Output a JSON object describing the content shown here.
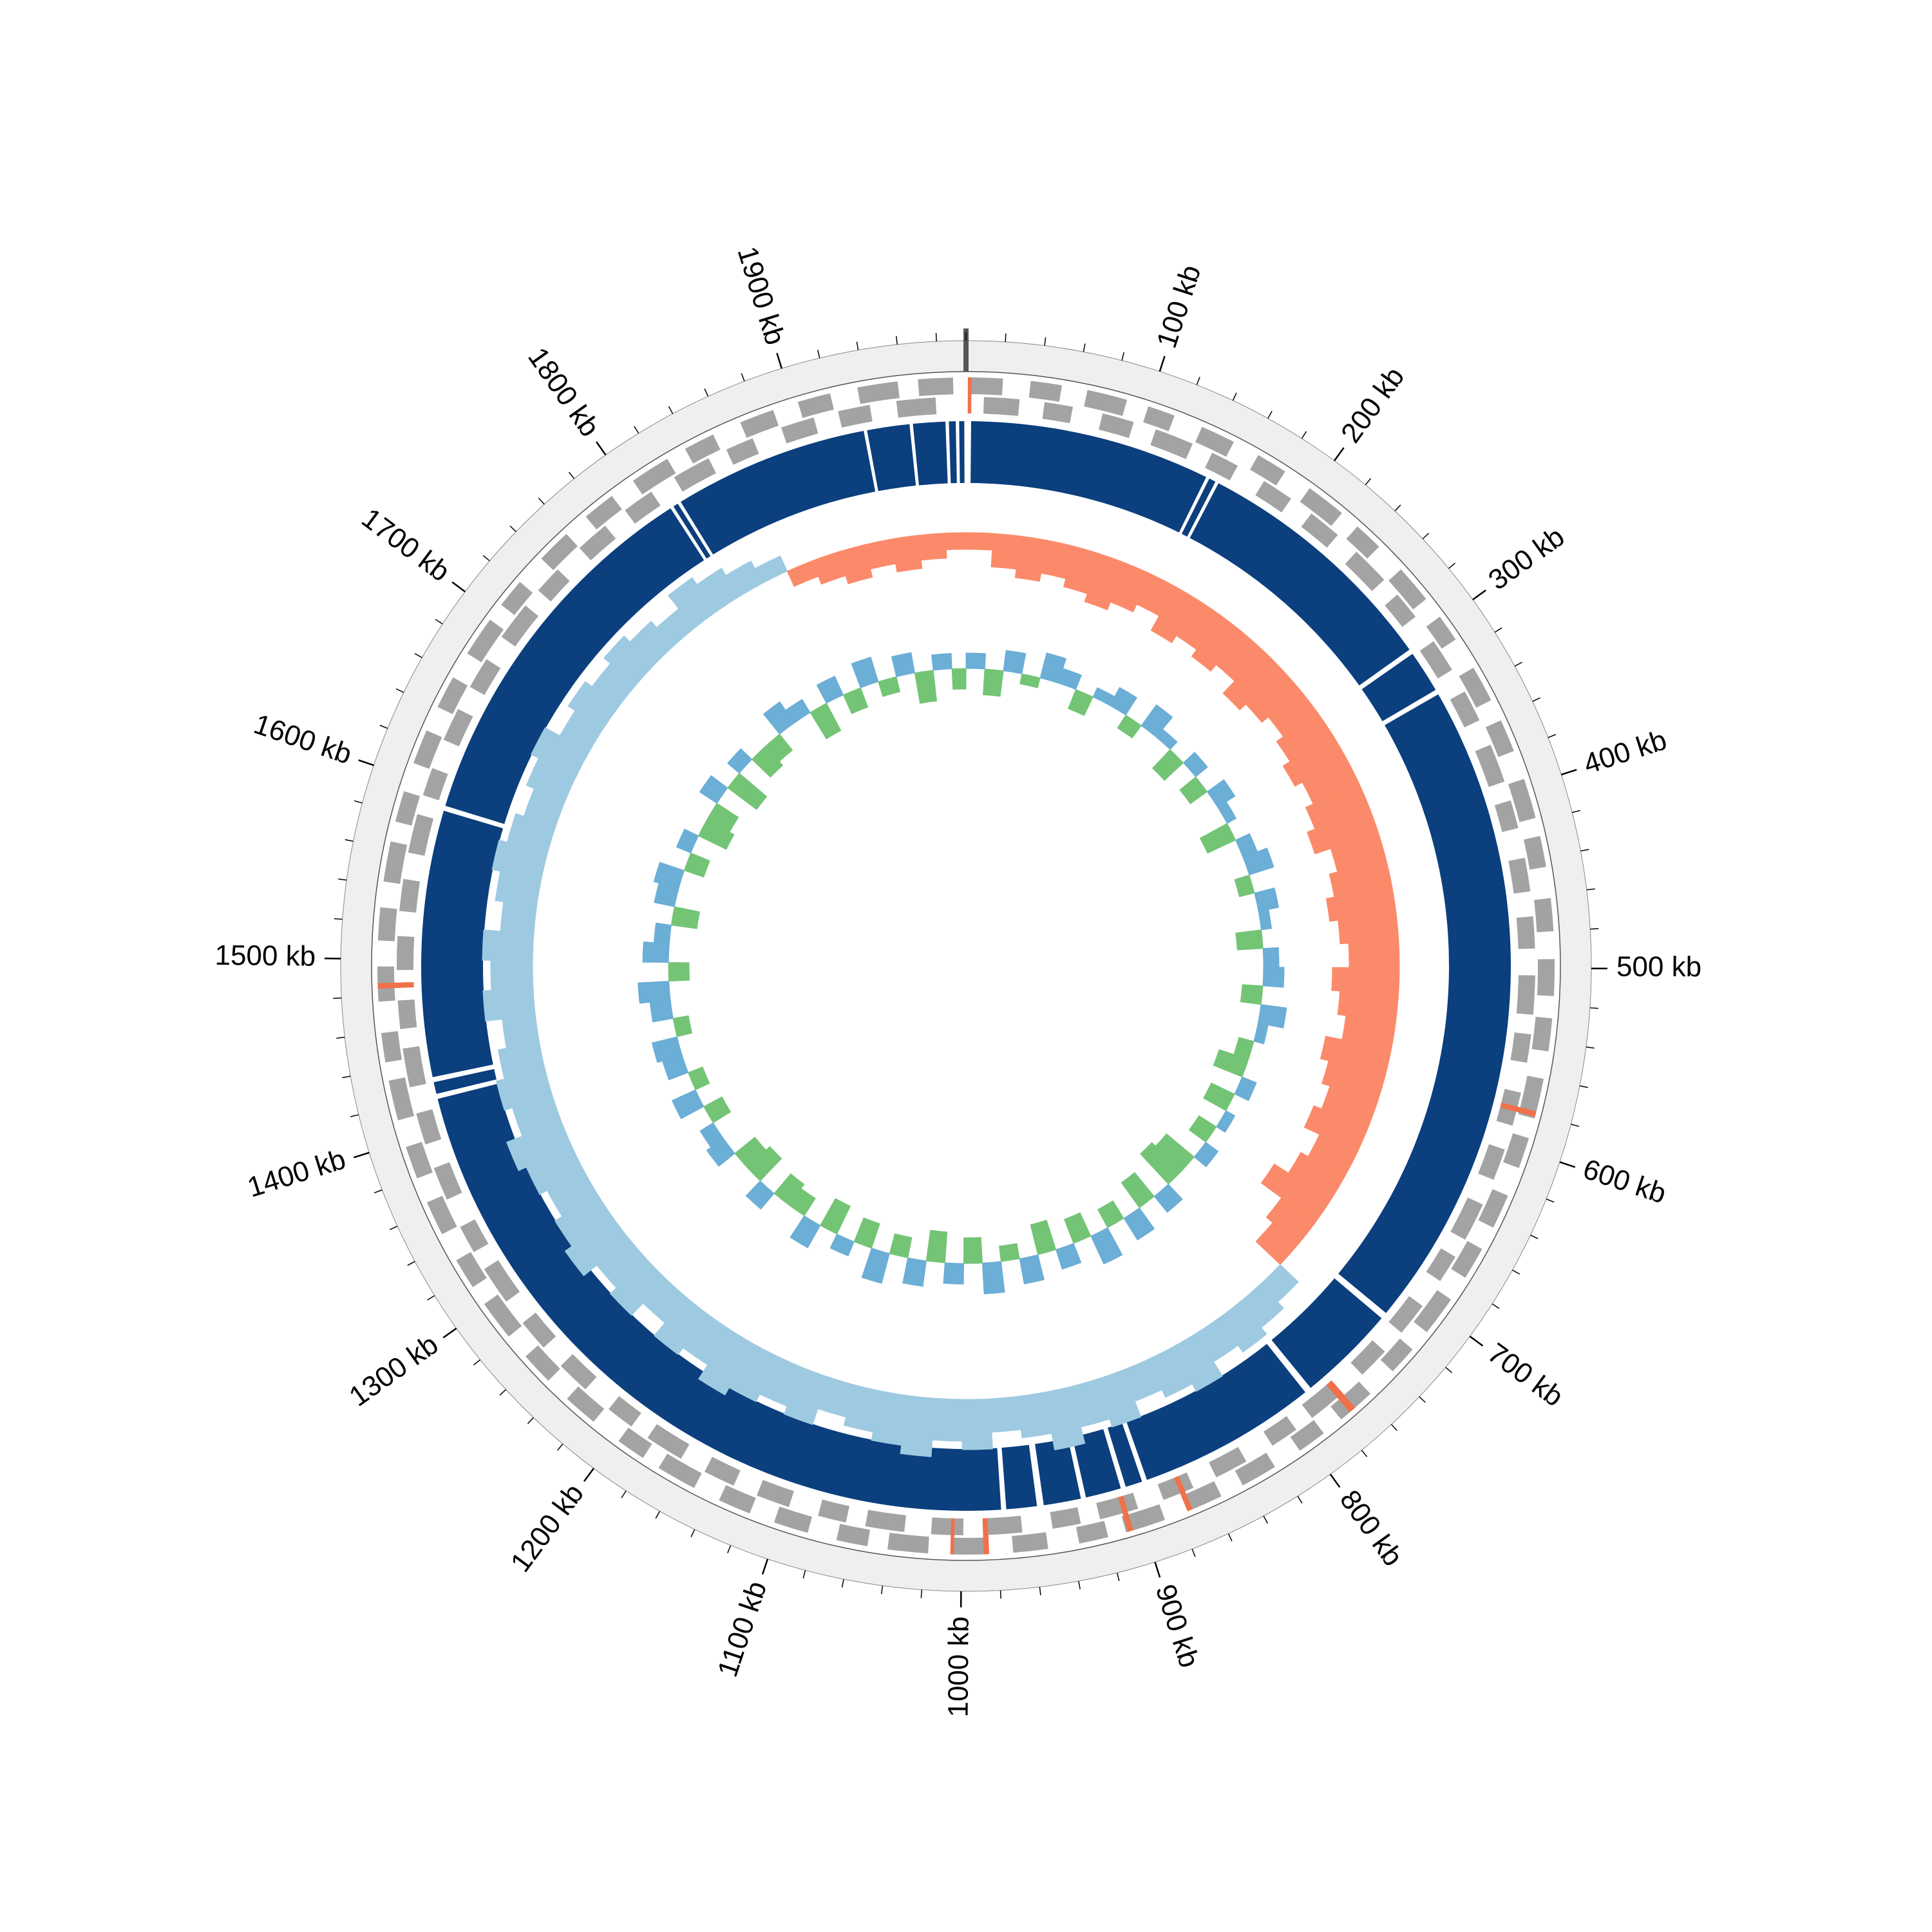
{
  "chart_data": {
    "type": "circular-genome",
    "xlim": [
      0,
      1995
    ],
    "xticks": [
      {
        "value": 100,
        "label": "100 kb"
      },
      {
        "value": 200,
        "label": "200 kb"
      },
      {
        "value": 300,
        "label": "300 kb"
      },
      {
        "value": 400,
        "label": "400 kb"
      },
      {
        "value": 500,
        "label": "500 kb"
      },
      {
        "value": 600,
        "label": "600 kb"
      },
      {
        "value": 700,
        "label": "700 kb"
      },
      {
        "value": 800,
        "label": "800 kb"
      },
      {
        "value": 900,
        "label": "900 kb"
      },
      {
        "value": 1000,
        "label": "1000 kb"
      },
      {
        "value": 1100,
        "label": "1100 kb"
      },
      {
        "value": 1200,
        "label": "1200 kb"
      },
      {
        "value": 1300,
        "label": "1300 kb"
      },
      {
        "value": 1400,
        "label": "1400 kb"
      },
      {
        "value": 1500,
        "label": "1500 kb"
      },
      {
        "value": 1600,
        "label": "1600 kb"
      },
      {
        "value": 1700,
        "label": "1700 kb"
      },
      {
        "value": 1800,
        "label": "1800 kb"
      },
      {
        "value": 1900,
        "label": "1900 kb"
      }
    ],
    "minor_xticks": [
      0,
      20,
      40,
      60,
      80,
      100,
      120,
      140,
      160,
      180,
      200,
      220,
      240,
      260,
      280,
      300,
      320,
      340,
      360,
      380,
      400,
      420,
      440,
      460,
      480,
      500,
      520,
      540,
      560,
      580,
      600,
      620,
      640,
      660,
      680,
      700,
      720,
      740,
      760,
      780,
      800,
      820,
      840,
      860,
      880,
      900,
      920,
      940,
      960,
      980,
      1000,
      1020,
      1040,
      1060,
      1080,
      1100,
      1120,
      1140,
      1160,
      1180,
      1200,
      1220,
      1240,
      1260,
      1280,
      1300,
      1320,
      1340,
      1360,
      1380,
      1400,
      1420,
      1440,
      1460,
      1480,
      1500,
      1520,
      1540,
      1560,
      1580,
      1600,
      1620,
      1640,
      1660,
      1680,
      1700,
      1720,
      1740,
      1760,
      1780,
      1800,
      1820,
      1840,
      1860,
      1880,
      1900,
      1920,
      1940,
      1960,
      1980
    ],
    "ring_color": "#efefef",
    "features": {
      "color": "#a3a3a3",
      "forward": [
        [
          2,
          20
        ],
        [
          35,
          52
        ],
        [
          66,
          88
        ],
        [
          100,
          115
        ],
        [
          131,
          150
        ],
        [
          165,
          182
        ],
        [
          198,
          220
        ],
        [
          231,
          247
        ],
        [
          264,
          285
        ],
        [
          297,
          312
        ],
        [
          330,
          350
        ],
        [
          362,
          380
        ],
        [
          396,
          418
        ],
        [
          428,
          445
        ],
        [
          462,
          480
        ],
        [
          495,
          515
        ],
        [
          527,
          545
        ],
        [
          560,
          582
        ],
        [
          593,
          610
        ],
        [
          626,
          645
        ],
        [
          658,
          676
        ],
        [
          690,
          712
        ],
        [
          724,
          740
        ],
        [
          757,
          778
        ],
        [
          790,
          806
        ],
        [
          822,
          842
        ],
        [
          855,
          873
        ],
        [
          888,
          910
        ],
        [
          920,
          936
        ],
        [
          953,
          972
        ],
        [
          986,
          1004
        ],
        [
          1018,
          1040
        ],
        [
          1051,
          1068
        ],
        [
          1084,
          1103
        ],
        [
          1117,
          1135
        ],
        [
          1150,
          1172
        ],
        [
          1182,
          1198
        ],
        [
          1215,
          1234
        ],
        [
          1248,
          1266
        ],
        [
          1280,
          1302
        ],
        [
          1313,
          1330
        ],
        [
          1346,
          1365
        ],
        [
          1379,
          1397
        ],
        [
          1412,
          1434
        ],
        [
          1444,
          1460
        ],
        [
          1477,
          1496
        ],
        [
          1510,
          1528
        ],
        [
          1542,
          1564
        ],
        [
          1575,
          1592
        ],
        [
          1608,
          1627
        ],
        [
          1641,
          1659
        ],
        [
          1674,
          1696
        ],
        [
          1706,
          1722
        ],
        [
          1739,
          1758
        ],
        [
          1772,
          1790
        ],
        [
          1804,
          1826
        ],
        [
          1837,
          1854
        ],
        [
          1870,
          1889
        ],
        [
          1903,
          1921
        ],
        [
          1936,
          1958
        ],
        [
          1969,
          1988
        ]
      ],
      "reverse": [
        [
          10,
          30
        ],
        [
          44,
          60
        ],
        [
          77,
          95
        ],
        [
          108,
          130
        ],
        [
          142,
          158
        ],
        [
          175,
          193
        ],
        [
          207,
          226
        ],
        [
          240,
          262
        ],
        [
          273,
          289
        ],
        [
          306,
          325
        ],
        [
          339,
          357
        ],
        [
          372,
          394
        ],
        [
          405,
          421
        ],
        [
          438,
          457
        ],
        [
          471,
          489
        ],
        [
          504,
          526
        ],
        [
          537,
          553
        ],
        [
          570,
          589
        ],
        [
          603,
          621
        ],
        [
          636,
          658
        ],
        [
          669,
          685
        ],
        [
          702,
          721
        ],
        [
          735,
          753
        ],
        [
          768,
          790
        ],
        [
          801,
          817
        ],
        [
          834,
          853
        ],
        [
          867,
          885
        ],
        [
          900,
          922
        ],
        [
          933,
          949
        ],
        [
          966,
          985
        ],
        [
          999,
          1017
        ],
        [
          1032,
          1054
        ],
        [
          1065,
          1081
        ],
        [
          1098,
          1117
        ],
        [
          1131,
          1149
        ],
        [
          1164,
          1186
        ],
        [
          1197,
          1213
        ],
        [
          1230,
          1249
        ],
        [
          1263,
          1281
        ],
        [
          1296,
          1318
        ],
        [
          1329,
          1345
        ],
        [
          1362,
          1381
        ],
        [
          1395,
          1413
        ],
        [
          1428,
          1450
        ],
        [
          1461,
          1477
        ],
        [
          1494,
          1513
        ],
        [
          1527,
          1545
        ],
        [
          1560,
          1582
        ],
        [
          1593,
          1609
        ],
        [
          1626,
          1645
        ],
        [
          1659,
          1677
        ],
        [
          1692,
          1714
        ],
        [
          1725,
          1741
        ],
        [
          1758,
          1777
        ],
        [
          1791,
          1809
        ],
        [
          1824,
          1846
        ],
        [
          1857,
          1873
        ],
        [
          1890,
          1909
        ],
        [
          1923,
          1941
        ],
        [
          1956,
          1978
        ]
      ]
    },
    "rna_features": {
      "color": "#f0704a",
      "values": [
        [
          1,
          3
        ],
        [
          578,
          581
        ],
        [
          768,
          772
        ],
        [
          872,
          875
        ],
        [
          906,
          909
        ],
        [
          985,
          988
        ],
        [
          1004,
          1006
        ],
        [
          1484,
          1487
        ]
      ]
    },
    "regions": {
      "color": "#0b3f7e",
      "values": [
        [
          3,
          145
        ],
        [
          147,
          151
        ],
        [
          153,
          302
        ],
        [
          305,
          330
        ],
        [
          333,
          718
        ],
        [
          722,
          780
        ],
        [
          784,
          890
        ],
        [
          893,
          903
        ],
        [
          906,
          927
        ],
        [
          930,
          952
        ],
        [
          956,
          974
        ],
        [
          977,
          1418
        ],
        [
          1421,
          1428
        ],
        [
          1431,
          1588
        ],
        [
          1591,
          1813
        ],
        [
          1815,
          1818
        ],
        [
          1820,
          1935
        ],
        [
          1937,
          1962
        ],
        [
          1964,
          1983
        ],
        [
          1985,
          1989
        ],
        [
          1991,
          1994
        ]
      ]
    },
    "x": [
      0,
      20,
      40,
      60,
      80,
      100,
      120,
      140,
      160,
      180,
      200,
      220,
      240,
      260,
      280,
      300,
      320,
      340,
      360,
      380,
      400,
      420,
      440,
      460,
      480,
      500,
      520,
      540,
      560,
      580,
      600,
      620,
      640,
      660,
      680,
      700,
      720,
      740,
      760,
      780,
      800,
      820,
      840,
      860,
      880,
      900,
      920,
      940,
      960,
      980,
      1000,
      1020,
      1040,
      1060,
      1080,
      1100,
      1120,
      1140,
      1160,
      1180,
      1200,
      1220,
      1240,
      1260,
      1280,
      1300,
      1320,
      1340,
      1360,
      1380,
      1400,
      1420,
      1440,
      1460,
      1480,
      1500,
      1520,
      1540,
      1560,
      1580,
      1600,
      1620,
      1640,
      1660,
      1680,
      1700,
      1720,
      1740,
      1760,
      1780,
      1800,
      1820,
      1840,
      1860,
      1880,
      1900,
      1920,
      1940,
      1960,
      1980
    ],
    "gc_skew": {
      "ylim": [
        -0.1,
        0.1
      ],
      "colors": [
        "#9ecae1",
        "#fb8a6a"
      ],
      "values": [
        -0.02,
        -0.04,
        -0.05,
        -0.04,
        -0.05,
        -0.06,
        -0.05,
        -0.04,
        -0.06,
        -0.05,
        -0.06,
        -0.05,
        -0.07,
        -0.06,
        -0.05,
        -0.06,
        -0.07,
        -0.06,
        -0.07,
        -0.08,
        -0.06,
        -0.07,
        -0.08,
        -0.07,
        -0.06,
        -0.08,
        -0.07,
        -0.06,
        -0.08,
        -0.07,
        -0.06,
        -0.07,
        -0.05,
        -0.06,
        -0.08,
        -0.05,
        -0.04,
        0.03,
        0.04,
        0.05,
        0.04,
        0.06,
        0.05,
        0.04,
        0.06,
        0.05,
        0.07,
        0.05,
        0.04,
        0.06,
        0.05,
        0.07,
        0.06,
        0.05,
        0.04,
        0.06,
        0.05,
        0.06,
        0.07,
        0.05,
        0.06,
        0.04,
        0.06,
        0.05,
        0.07,
        0.06,
        0.05,
        0.06,
        0.07,
        0.05,
        0.06,
        0.05,
        0.04,
        0.06,
        0.05,
        0.06,
        0.04,
        0.05,
        0.06,
        0.05,
        0.04,
        0.05,
        0.06,
        0.04,
        0.05,
        0.04,
        0.05,
        0.04,
        0.03,
        0.05,
        0.04,
        0.03,
        0.02,
        -0.02,
        -0.03,
        -0.04,
        -0.03,
        -0.04,
        -0.03,
        -0.02
      ]
    },
    "gc_content": {
      "ylim": [
        -0.1,
        0.1
      ],
      "colors": [
        "#6baed6",
        "#74c476"
      ],
      "values": [
        0.03,
        -0.05,
        0.04,
        -0.02,
        0.05,
        0.03,
        -0.04,
        0.02,
        0.04,
        -0.03,
        0.05,
        0.02,
        -0.05,
        0.03,
        -0.04,
        0.04,
        0.02,
        -0.06,
        0.03,
        0.05,
        -0.03,
        0.04,
        0.02,
        -0.05,
        0.03,
        0.04,
        -0.04,
        0.05,
        0.02,
        -0.03,
        -0.06,
        0.03,
        -0.05,
        0.02,
        -0.04,
        0.03,
        -0.07,
        -0.08,
        0.04,
        -0.06,
        0.05,
        -0.04,
        0.06,
        -0.05,
        0.04,
        -0.06,
        0.05,
        -0.03,
        0.06,
        -0.05,
        0.04,
        -0.06,
        0.05,
        -0.04,
        0.06,
        -0.05,
        0.03,
        -0.06,
        0.05,
        -0.04,
        -0.05,
        0.04,
        -0.06,
        -0.05,
        0.04,
        0.03,
        -0.04,
        0.05,
        -0.03,
        0.04,
        0.05,
        -0.03,
        0.04,
        0.06,
        -0.04,
        0.05,
        0.03,
        -0.05,
        0.04,
        0.05,
        -0.04,
        0.03,
        -0.06,
        -0.05,
        0.04,
        -0.07,
        0.03,
        -0.05,
        -0.04,
        0.05,
        0.03,
        -0.06,
        0.04,
        -0.04,
        0.05,
        -0.03,
        0.04,
        -0.06,
        0.03,
        -0.04
      ]
    }
  }
}
